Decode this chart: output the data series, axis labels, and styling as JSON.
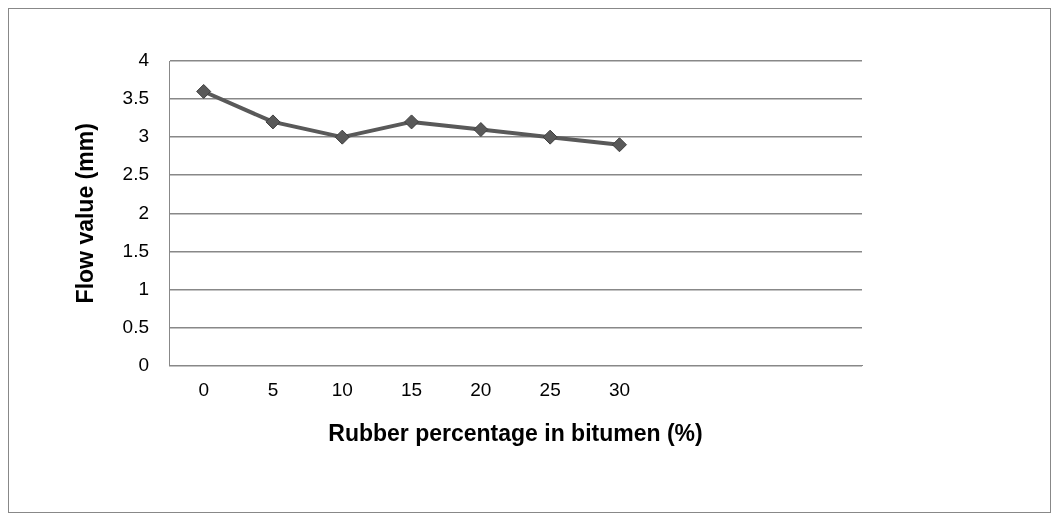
{
  "chart_data": {
    "type": "line",
    "xlabel": "Rubber percentage in bitumen (%)",
    "ylabel": "Flow value (mm)",
    "categories": [
      "0",
      "5",
      "10",
      "15",
      "20",
      "25",
      "30",
      null,
      null,
      null
    ],
    "series": [
      {
        "color": "#595959",
        "values": [
          3.6,
          3.2,
          3.0,
          3.2,
          3.1,
          3.0,
          2.9,
          null,
          null,
          null
        ]
      }
    ],
    "ylim": [
      0,
      4
    ],
    "yticks": [
      0,
      0.5,
      1,
      1.5,
      2,
      2.5,
      3,
      3.5,
      4
    ],
    "grid": "y",
    "legend": false,
    "marker": "diamond",
    "line_style": "solid"
  }
}
